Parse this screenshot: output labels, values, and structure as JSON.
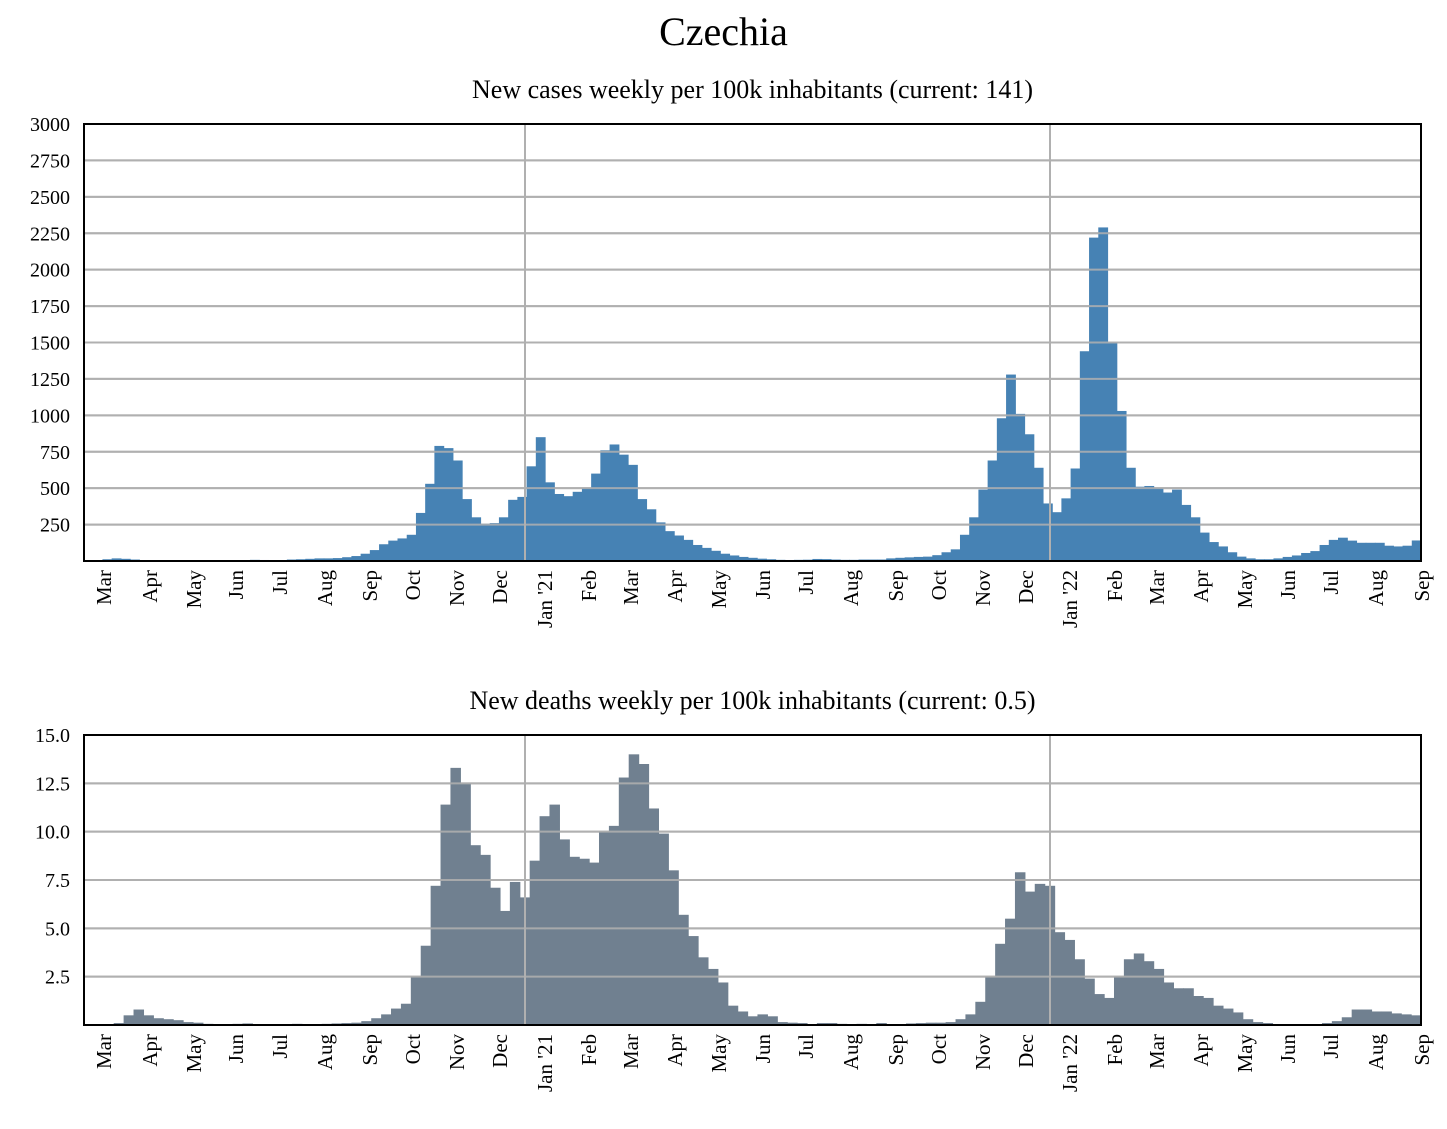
{
  "page_title": "Czechia",
  "chart_data": [
    {
      "type": "bar",
      "title": "New cases weekly per 100k inhabitants (current: 141)",
      "xlabel": "",
      "ylabel": "",
      "ylim": [
        0,
        3000
      ],
      "yticks": [
        "250",
        "500",
        "750",
        "1000",
        "1250",
        "1500",
        "1750",
        "2000",
        "2250",
        "2500",
        "2750",
        "3000"
      ],
      "month_labels": [
        "Mar",
        "Apr",
        "May",
        "Jun",
        "Jul",
        "Aug",
        "Sep",
        "Oct",
        "Nov",
        "Dec",
        "Jan '21",
        "Feb",
        "Mar",
        "Apr",
        "May",
        "Jun",
        "Jul",
        "Aug",
        "Sep",
        "Oct",
        "Nov",
        "Dec",
        "Jan '22",
        "Feb",
        "Mar",
        "Apr",
        "May",
        "Jun",
        "Jul",
        "Aug",
        "Sep"
      ],
      "year_lines": [
        "Jan '21",
        "Jan '22"
      ],
      "grid": true,
      "color": "#4682b4",
      "values": [
        2,
        5,
        12,
        18,
        15,
        10,
        5,
        3,
        2,
        2,
        2,
        1,
        1,
        1,
        1,
        1,
        2,
        5,
        8,
        7,
        5,
        6,
        10,
        12,
        15,
        18,
        18,
        20,
        26,
        34,
        50,
        75,
        115,
        140,
        155,
        180,
        330,
        530,
        790,
        775,
        690,
        425,
        300,
        255,
        260,
        300,
        420,
        440,
        650,
        850,
        540,
        460,
        445,
        475,
        500,
        600,
        760,
        800,
        730,
        660,
        425,
        355,
        265,
        205,
        175,
        145,
        110,
        90,
        70,
        50,
        38,
        28,
        22,
        16,
        12,
        8,
        7,
        8,
        9,
        14,
        13,
        10,
        8,
        8,
        10,
        10,
        10,
        18,
        22,
        25,
        28,
        30,
        40,
        60,
        80,
        180,
        300,
        490,
        690,
        980,
        1280,
        1010,
        870,
        640,
        395,
        335,
        430,
        635,
        1440,
        2220,
        2290,
        1500,
        1030,
        640,
        510,
        515,
        500,
        470,
        490,
        385,
        300,
        195,
        130,
        100,
        60,
        30,
        18,
        12,
        12,
        18,
        28,
        38,
        55,
        68,
        110,
        145,
        160,
        140,
        125,
        125,
        125,
        105,
        100,
        105,
        141
      ]
    },
    {
      "type": "bar",
      "title": "New deaths weekly per 100k inhabitants (current: 0.5)",
      "xlabel": "",
      "ylabel": "",
      "ylim": [
        0,
        15
      ],
      "yticks": [
        "2.5",
        "5.0",
        "7.5",
        "10.0",
        "12.5",
        "15.0"
      ],
      "month_labels": [
        "Mar",
        "Apr",
        "May",
        "Jun",
        "Jul",
        "Aug",
        "Sep",
        "Oct",
        "Nov",
        "Dec",
        "Jan '21",
        "Feb",
        "Mar",
        "Apr",
        "May",
        "Jun",
        "Jul",
        "Aug",
        "Sep",
        "Oct",
        "Nov",
        "Dec",
        "Jan '22",
        "Feb",
        "Mar",
        "Apr",
        "May",
        "Jun",
        "Jul",
        "Aug",
        "Sep"
      ],
      "year_lines": [
        "Jan '21",
        "Jan '22"
      ],
      "grid": true,
      "color": "#708090",
      "values": [
        0,
        0,
        0,
        0.1,
        0.5,
        0.8,
        0.5,
        0.35,
        0.3,
        0.25,
        0.15,
        0.12,
        0.06,
        0.04,
        0.04,
        0.06,
        0.08,
        0.05,
        0.03,
        0.03,
        0.05,
        0.06,
        0.04,
        0.03,
        0.06,
        0.08,
        0.1,
        0.12,
        0.2,
        0.35,
        0.55,
        0.85,
        1.1,
        2.5,
        4.1,
        7.2,
        11.4,
        13.3,
        12.5,
        9.3,
        8.8,
        7.1,
        5.9,
        7.4,
        6.6,
        8.5,
        10.8,
        11.4,
        9.6,
        8.7,
        8.6,
        8.4,
        10.0,
        10.3,
        12.8,
        14.0,
        13.5,
        11.2,
        9.9,
        8.0,
        5.7,
        4.6,
        3.5,
        2.9,
        2.2,
        1.0,
        0.7,
        0.45,
        0.55,
        0.45,
        0.15,
        0.12,
        0.1,
        0.05,
        0.1,
        0.1,
        0.06,
        0.04,
        0.06,
        0.05,
        0.1,
        0.04,
        0.05,
        0.08,
        0.1,
        0.12,
        0.12,
        0.15,
        0.3,
        0.55,
        1.2,
        2.5,
        4.2,
        5.5,
        7.9,
        6.9,
        7.3,
        7.2,
        4.8,
        4.4,
        3.4,
        2.4,
        1.6,
        1.4,
        2.5,
        3.4,
        3.7,
        3.3,
        2.9,
        2.2,
        1.9,
        1.9,
        1.5,
        1.4,
        1.0,
        0.85,
        0.65,
        0.3,
        0.15,
        0.1,
        0.05,
        0.02,
        0.02,
        0.02,
        0.03,
        0.1,
        0.2,
        0.4,
        0.8,
        0.8,
        0.7,
        0.7,
        0.6,
        0.55,
        0.5
      ]
    }
  ]
}
